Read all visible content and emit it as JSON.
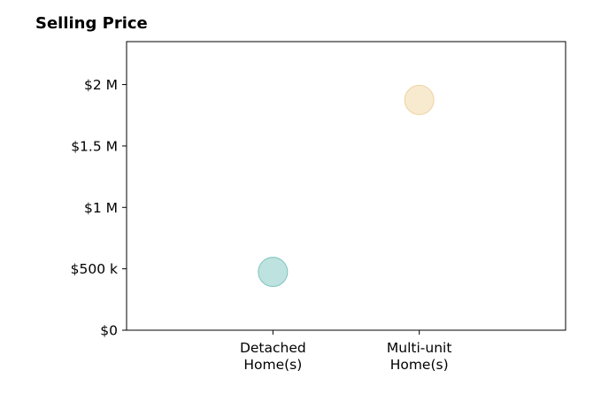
{
  "chart_data": {
    "type": "scatter",
    "title": "Selling Price",
    "categories": [
      "Detached Home(s)",
      "Multi-unit Home(s)"
    ],
    "category_label_lines": [
      [
        "Detached",
        "Home(s)"
      ],
      [
        "Multi-unit",
        "Home(s)"
      ]
    ],
    "values": [
      475000,
      1875000
    ],
    "colors": [
      "#a8d8d4",
      "#f5e3bf"
    ],
    "edge_colors": [
      "#7cc4be",
      "#edd3a2"
    ],
    "ylim": [
      0,
      2350000
    ],
    "yticks": [
      0,
      500000,
      1000000,
      1500000,
      2000000
    ],
    "ytick_labels": [
      "$0",
      "$500 k",
      "$1 M",
      "$1.5 M",
      "$2 M"
    ],
    "xlabel": "",
    "ylabel": "",
    "grid": false,
    "legend": "none"
  }
}
